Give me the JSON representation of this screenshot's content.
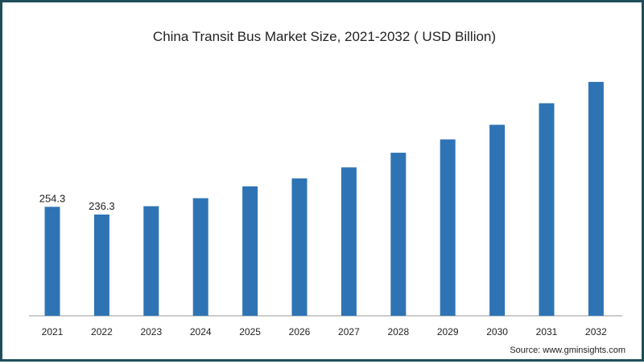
{
  "colors": {
    "frame": "#1f4e5a",
    "bar": "#2e74b5",
    "axis": "#999999",
    "text": "#222222"
  },
  "source": "Source: www.gminsights.com",
  "chart_data": {
    "type": "bar",
    "title": "China Transit Bus Market Size, 2021-2032 ( USD Billion)",
    "xlabel": "",
    "ylabel": "",
    "categories": [
      "2021",
      "2022",
      "2023",
      "2024",
      "2025",
      "2026",
      "2027",
      "2028",
      "2029",
      "2030",
      "2031",
      "2032"
    ],
    "values": [
      254.3,
      236.3,
      255.7,
      274.4,
      302.0,
      320.5,
      346.3,
      380.5,
      411.6,
      445.7,
      496.0,
      545.8
    ],
    "data_labels": [
      "254.3",
      "236.3",
      "",
      "",
      "",
      "",
      "",
      "",
      "",
      "",
      "",
      ""
    ],
    "ylim": [
      0,
      600
    ],
    "grid": false,
    "legend": "none"
  }
}
